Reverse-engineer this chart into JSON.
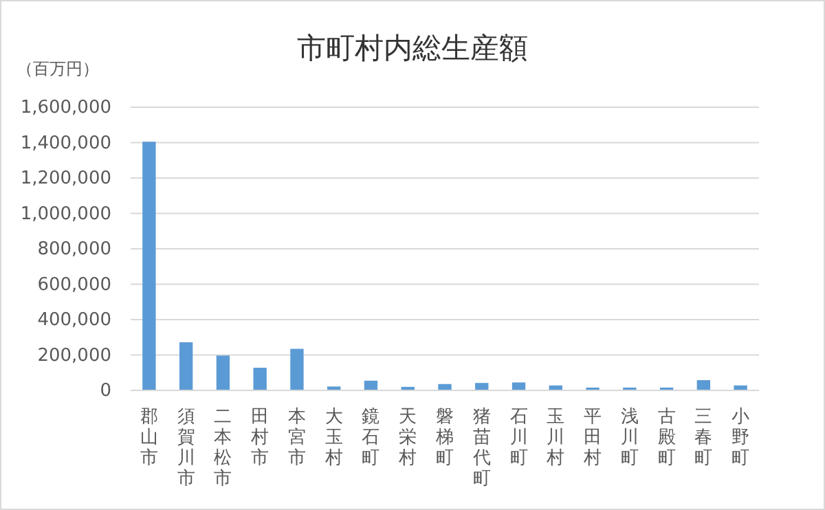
{
  "chart_data": {
    "type": "bar",
    "title": "市町村内総生産額",
    "ylabel": "（百万円）",
    "categories": [
      "郡山市",
      "須賀川市",
      "二本松市",
      "田村市",
      "本宮市",
      "大玉村",
      "鏡石町",
      "天栄村",
      "磐梯町",
      "猪苗代町",
      "石川町",
      "玉川村",
      "平田村",
      "浅川町",
      "古殿町",
      "三春町",
      "小野町"
    ],
    "values": [
      1405000,
      272000,
      197000,
      128000,
      235000,
      22000,
      55000,
      20000,
      36000,
      42000,
      45000,
      28000,
      16000,
      16000,
      16000,
      58000,
      28000
    ],
    "color": "#5b9bd5",
    "ylim": [
      0,
      1600000
    ],
    "yticks": [
      {
        "value": 0,
        "label": "0"
      },
      {
        "value": 200000,
        "label": "200,000"
      },
      {
        "value": 400000,
        "label": "400,000"
      },
      {
        "value": 600000,
        "label": "600,000"
      },
      {
        "value": 800000,
        "label": "800,000"
      },
      {
        "value": 1000000,
        "label": "1,000,000"
      },
      {
        "value": 1200000,
        "label": "1,200,000"
      },
      {
        "value": 1400000,
        "label": "1,400,000"
      },
      {
        "value": 1600000,
        "label": "1,600,000"
      }
    ],
    "grid": "y"
  }
}
